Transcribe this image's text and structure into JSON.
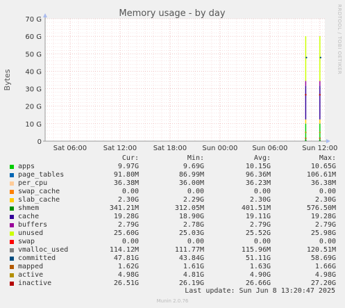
{
  "chart_data": {
    "type": "line",
    "title": "Memory usage - by day",
    "ylabel": "Bytes",
    "ylim": [
      0,
      70
    ],
    "yticks": [
      "0",
      "10 G",
      "20 G",
      "30 G",
      "40 G",
      "50 G",
      "60 G",
      "70 G"
    ],
    "xticks": [
      "Sat 06:00",
      "Sat 12:00",
      "Sat 18:00",
      "Sun 00:00",
      "Sun 06:00",
      "Sun 12:00"
    ],
    "x_range_hours": [
      0,
      33.6
    ],
    "data_segments": [
      {
        "x_hours": 31.3,
        "stack_top": 58.4
      },
      {
        "x_hours": 33.0,
        "stack_top": 60.0
      }
    ],
    "side_label": "RRDTOOL / TOBI OETIKER",
    "grid": true
  },
  "legend": {
    "headers": {
      "cur": "Cur:",
      "min": "Min:",
      "avg": "Avg:",
      "max": "Max:"
    },
    "items": [
      {
        "name": "apps",
        "color": "#00cc00",
        "cur": "9.97G",
        "min": "9.69G",
        "avg": "10.15G",
        "max": "10.65G"
      },
      {
        "name": "page_tables",
        "color": "#0066b3",
        "cur": "91.80M",
        "min": "86.99M",
        "avg": "96.36M",
        "max": "106.61M"
      },
      {
        "name": "per_cpu",
        "color": "#ffcc99",
        "cur": "36.38M",
        "min": "36.00M",
        "avg": "36.23M",
        "max": "36.38M"
      },
      {
        "name": "swap_cache",
        "color": "#ff8000",
        "cur": "0.00",
        "min": "0.00",
        "avg": "0.00",
        "max": "0.00"
      },
      {
        "name": "slab_cache",
        "color": "#ffcc00",
        "cur": "2.30G",
        "min": "2.29G",
        "avg": "2.30G",
        "max": "2.30G"
      },
      {
        "name": "shmem",
        "color": "#008f00",
        "cur": "341.21M",
        "min": "312.05M",
        "avg": "401.51M",
        "max": "576.50M"
      },
      {
        "name": "cache",
        "color": "#330099",
        "cur": "19.28G",
        "min": "18.90G",
        "avg": "19.11G",
        "max": "19.28G"
      },
      {
        "name": "buffers",
        "color": "#990099",
        "cur": "2.79G",
        "min": "2.78G",
        "avg": "2.79G",
        "max": "2.79G"
      },
      {
        "name": "unused",
        "color": "#ccff00",
        "cur": "25.60G",
        "min": "25.03G",
        "avg": "25.52G",
        "max": "25.98G"
      },
      {
        "name": "swap",
        "color": "#ff0000",
        "cur": "0.00",
        "min": "0.00",
        "avg": "0.00",
        "max": "0.00"
      },
      {
        "name": "vmalloc_used",
        "color": "#808080",
        "cur": "114.12M",
        "min": "111.77M",
        "avg": "115.96M",
        "max": "120.51M"
      },
      {
        "name": "committed",
        "color": "#004d80",
        "cur": "47.81G",
        "min": "43.84G",
        "avg": "51.11G",
        "max": "58.69G"
      },
      {
        "name": "mapped",
        "color": "#b35a00",
        "cur": "1.62G",
        "min": "1.61G",
        "avg": "1.63G",
        "max": "1.66G"
      },
      {
        "name": "active",
        "color": "#b38f00",
        "cur": "4.98G",
        "min": "4.81G",
        "avg": "4.90G",
        "max": "4.98G"
      },
      {
        "name": "inactive",
        "color": "#b30000",
        "cur": "26.51G",
        "min": "26.19G",
        "avg": "26.66G",
        "max": "27.20G"
      }
    ]
  },
  "footer": {
    "last_update": "Last update: Sun Jun  8 13:20:47 2025",
    "munin_version": "Munin 2.0.76"
  }
}
